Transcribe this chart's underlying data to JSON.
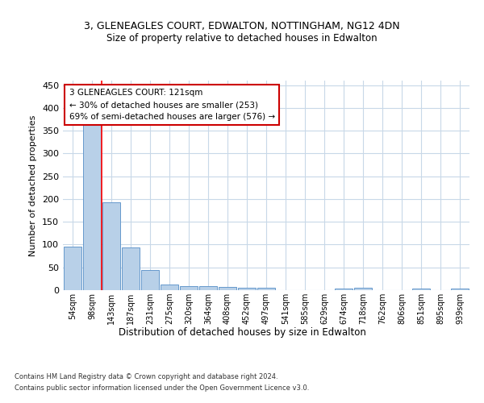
{
  "title1": "3, GLENEAGLES COURT, EDWALTON, NOTTINGHAM, NG12 4DN",
  "title2": "Size of property relative to detached houses in Edwalton",
  "xlabel": "Distribution of detached houses by size in Edwalton",
  "ylabel": "Number of detached properties",
  "bar_labels": [
    "54sqm",
    "98sqm",
    "143sqm",
    "187sqm",
    "231sqm",
    "275sqm",
    "320sqm",
    "364sqm",
    "408sqm",
    "452sqm",
    "497sqm",
    "541sqm",
    "585sqm",
    "629sqm",
    "674sqm",
    "718sqm",
    "762sqm",
    "806sqm",
    "851sqm",
    "895sqm",
    "939sqm"
  ],
  "bar_values": [
    95,
    363,
    193,
    93,
    45,
    13,
    9,
    9,
    7,
    6,
    5,
    0,
    0,
    0,
    4,
    5,
    0,
    0,
    3,
    0,
    3
  ],
  "bar_color": "#b8d0e8",
  "bar_edge_color": "#6699cc",
  "ylim": [
    0,
    460
  ],
  "yticks": [
    0,
    50,
    100,
    150,
    200,
    250,
    300,
    350,
    400,
    450
  ],
  "property_line_x": 1.48,
  "annotation_text": "3 GLENEAGLES COURT: 121sqm\n← 30% of detached houses are smaller (253)\n69% of semi-detached houses are larger (576) →",
  "annotation_box_color": "#ffffff",
  "annotation_box_edge_color": "#cc0000",
  "footer1": "Contains HM Land Registry data © Crown copyright and database right 2024.",
  "footer2": "Contains public sector information licensed under the Open Government Licence v3.0.",
  "background_color": "#ffffff",
  "grid_color": "#c8d8e8",
  "title1_fontsize": 9,
  "title2_fontsize": 8.5,
  "xlabel_fontsize": 8.5,
  "ylabel_fontsize": 8
}
